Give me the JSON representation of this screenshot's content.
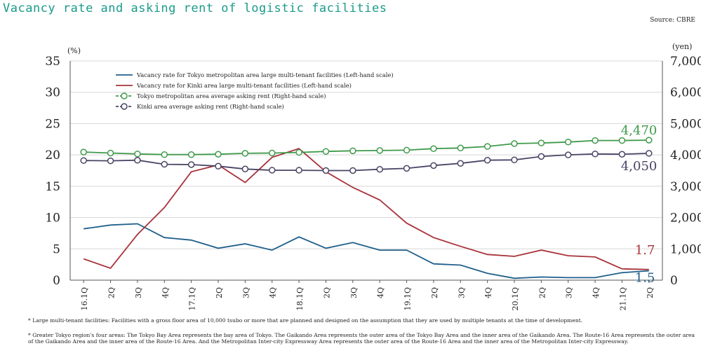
{
  "title": "Vacancy rate and asking rent of logistic facilities",
  "source": "Source: CBRE",
  "notes": {
    "note1": "* Large multi-tenant facilities: Facilities with a gross floor area of 10,000 tsubo or more that are planned and designed on the assumption that they are used by multiple tenants at the time of development.",
    "note2": "* Greater Tokyo region's four areas: The Tokyo Bay Area represents the bay area of Tokyo. The Gaikando Area represents the outer area of the Tokyo Bay Area and the inner area of the Gaikando Area. The Route-16 Area represents the outer area of the Gaikando Area and the inner area of the Route-16 Area. And the Metropolitan Inter-city Expressway Area represents the outer area of the Route-16 Area and the inner area of the Metropolitan Inter-city Expressway."
  },
  "colors": {
    "tokyo_vacancy": "#1f5f8b",
    "kinki_vacancy": "#a8323a",
    "tokyo_rent": "#3f9a4a",
    "kinki_rent": "#4a4466",
    "grid": "#d8d8d8",
    "axis": "#555555"
  },
  "chart_data": {
    "type": "line",
    "x": [
      "16.1Q",
      "2Q",
      "3Q",
      "4Q",
      "17.1Q",
      "2Q",
      "3Q",
      "4Q",
      "18.1Q",
      "2Q",
      "3Q",
      "4Q",
      "19.1Q",
      "2Q",
      "3Q",
      "4Q",
      "20.1Q",
      "2Q",
      "3Q",
      "4Q",
      "21.1Q",
      "2Q"
    ],
    "y_left": {
      "label": "(%)",
      "range": [
        0,
        35
      ],
      "ticks": [
        "0",
        "5",
        "10",
        "15",
        "20",
        "25",
        "30",
        "35"
      ]
    },
    "y_right": {
      "label": "(yen)",
      "range": [
        0,
        7000
      ],
      "ticks": [
        "0",
        "1,000",
        "2,000",
        "3,000",
        "4,000",
        "5,000",
        "6,000",
        "7,000"
      ]
    },
    "grid": "horizontal",
    "legend_position": "top-left",
    "series": [
      {
        "name": "Vacancy rate for Tokyo metropolitan area large multi-tenant facilities (Left-hand scale)",
        "axis": "left",
        "marker": "none",
        "values": [
          8.2,
          8.8,
          9.0,
          6.8,
          6.4,
          5.1,
          5.8,
          4.8,
          6.9,
          5.1,
          6.0,
          4.8,
          4.8,
          2.6,
          2.4,
          1.1,
          0.3,
          0.5,
          0.4,
          0.4,
          1.2,
          1.5
        ]
      },
      {
        "name": "Vacancy rate for Kinki area large multi-tenant facilities (Left-hand scale)",
        "axis": "left",
        "marker": "none",
        "values": [
          3.4,
          1.9,
          7.3,
          11.6,
          17.3,
          18.4,
          15.6,
          19.6,
          21.0,
          17.3,
          14.8,
          12.8,
          9.1,
          6.8,
          5.4,
          4.1,
          3.8,
          4.8,
          3.9,
          3.7,
          1.8,
          1.7
        ]
      },
      {
        "name": "Tokyo metropolitan area average asking rent (Right-hand scale)",
        "axis": "right",
        "marker": "circle",
        "values": [
          4090,
          4060,
          4030,
          4010,
          4010,
          4020,
          4050,
          4060,
          4080,
          4110,
          4130,
          4140,
          4150,
          4200,
          4220,
          4270,
          4360,
          4380,
          4410,
          4460,
          4460,
          4470
        ]
      },
      {
        "name": "Kinki area average asking rent (Right-hand scale)",
        "axis": "right",
        "marker": "circle",
        "values": [
          3820,
          3810,
          3830,
          3700,
          3690,
          3640,
          3550,
          3510,
          3510,
          3500,
          3500,
          3540,
          3570,
          3660,
          3730,
          3830,
          3840,
          3950,
          4000,
          4030,
          4020,
          4050
        ]
      }
    ],
    "annotations": [
      {
        "text": "4,470",
        "series": 2
      },
      {
        "text": "4,050",
        "series": 3
      },
      {
        "text": "1.7",
        "series": 1
      },
      {
        "text": "1.5",
        "series": 0
      }
    ]
  }
}
